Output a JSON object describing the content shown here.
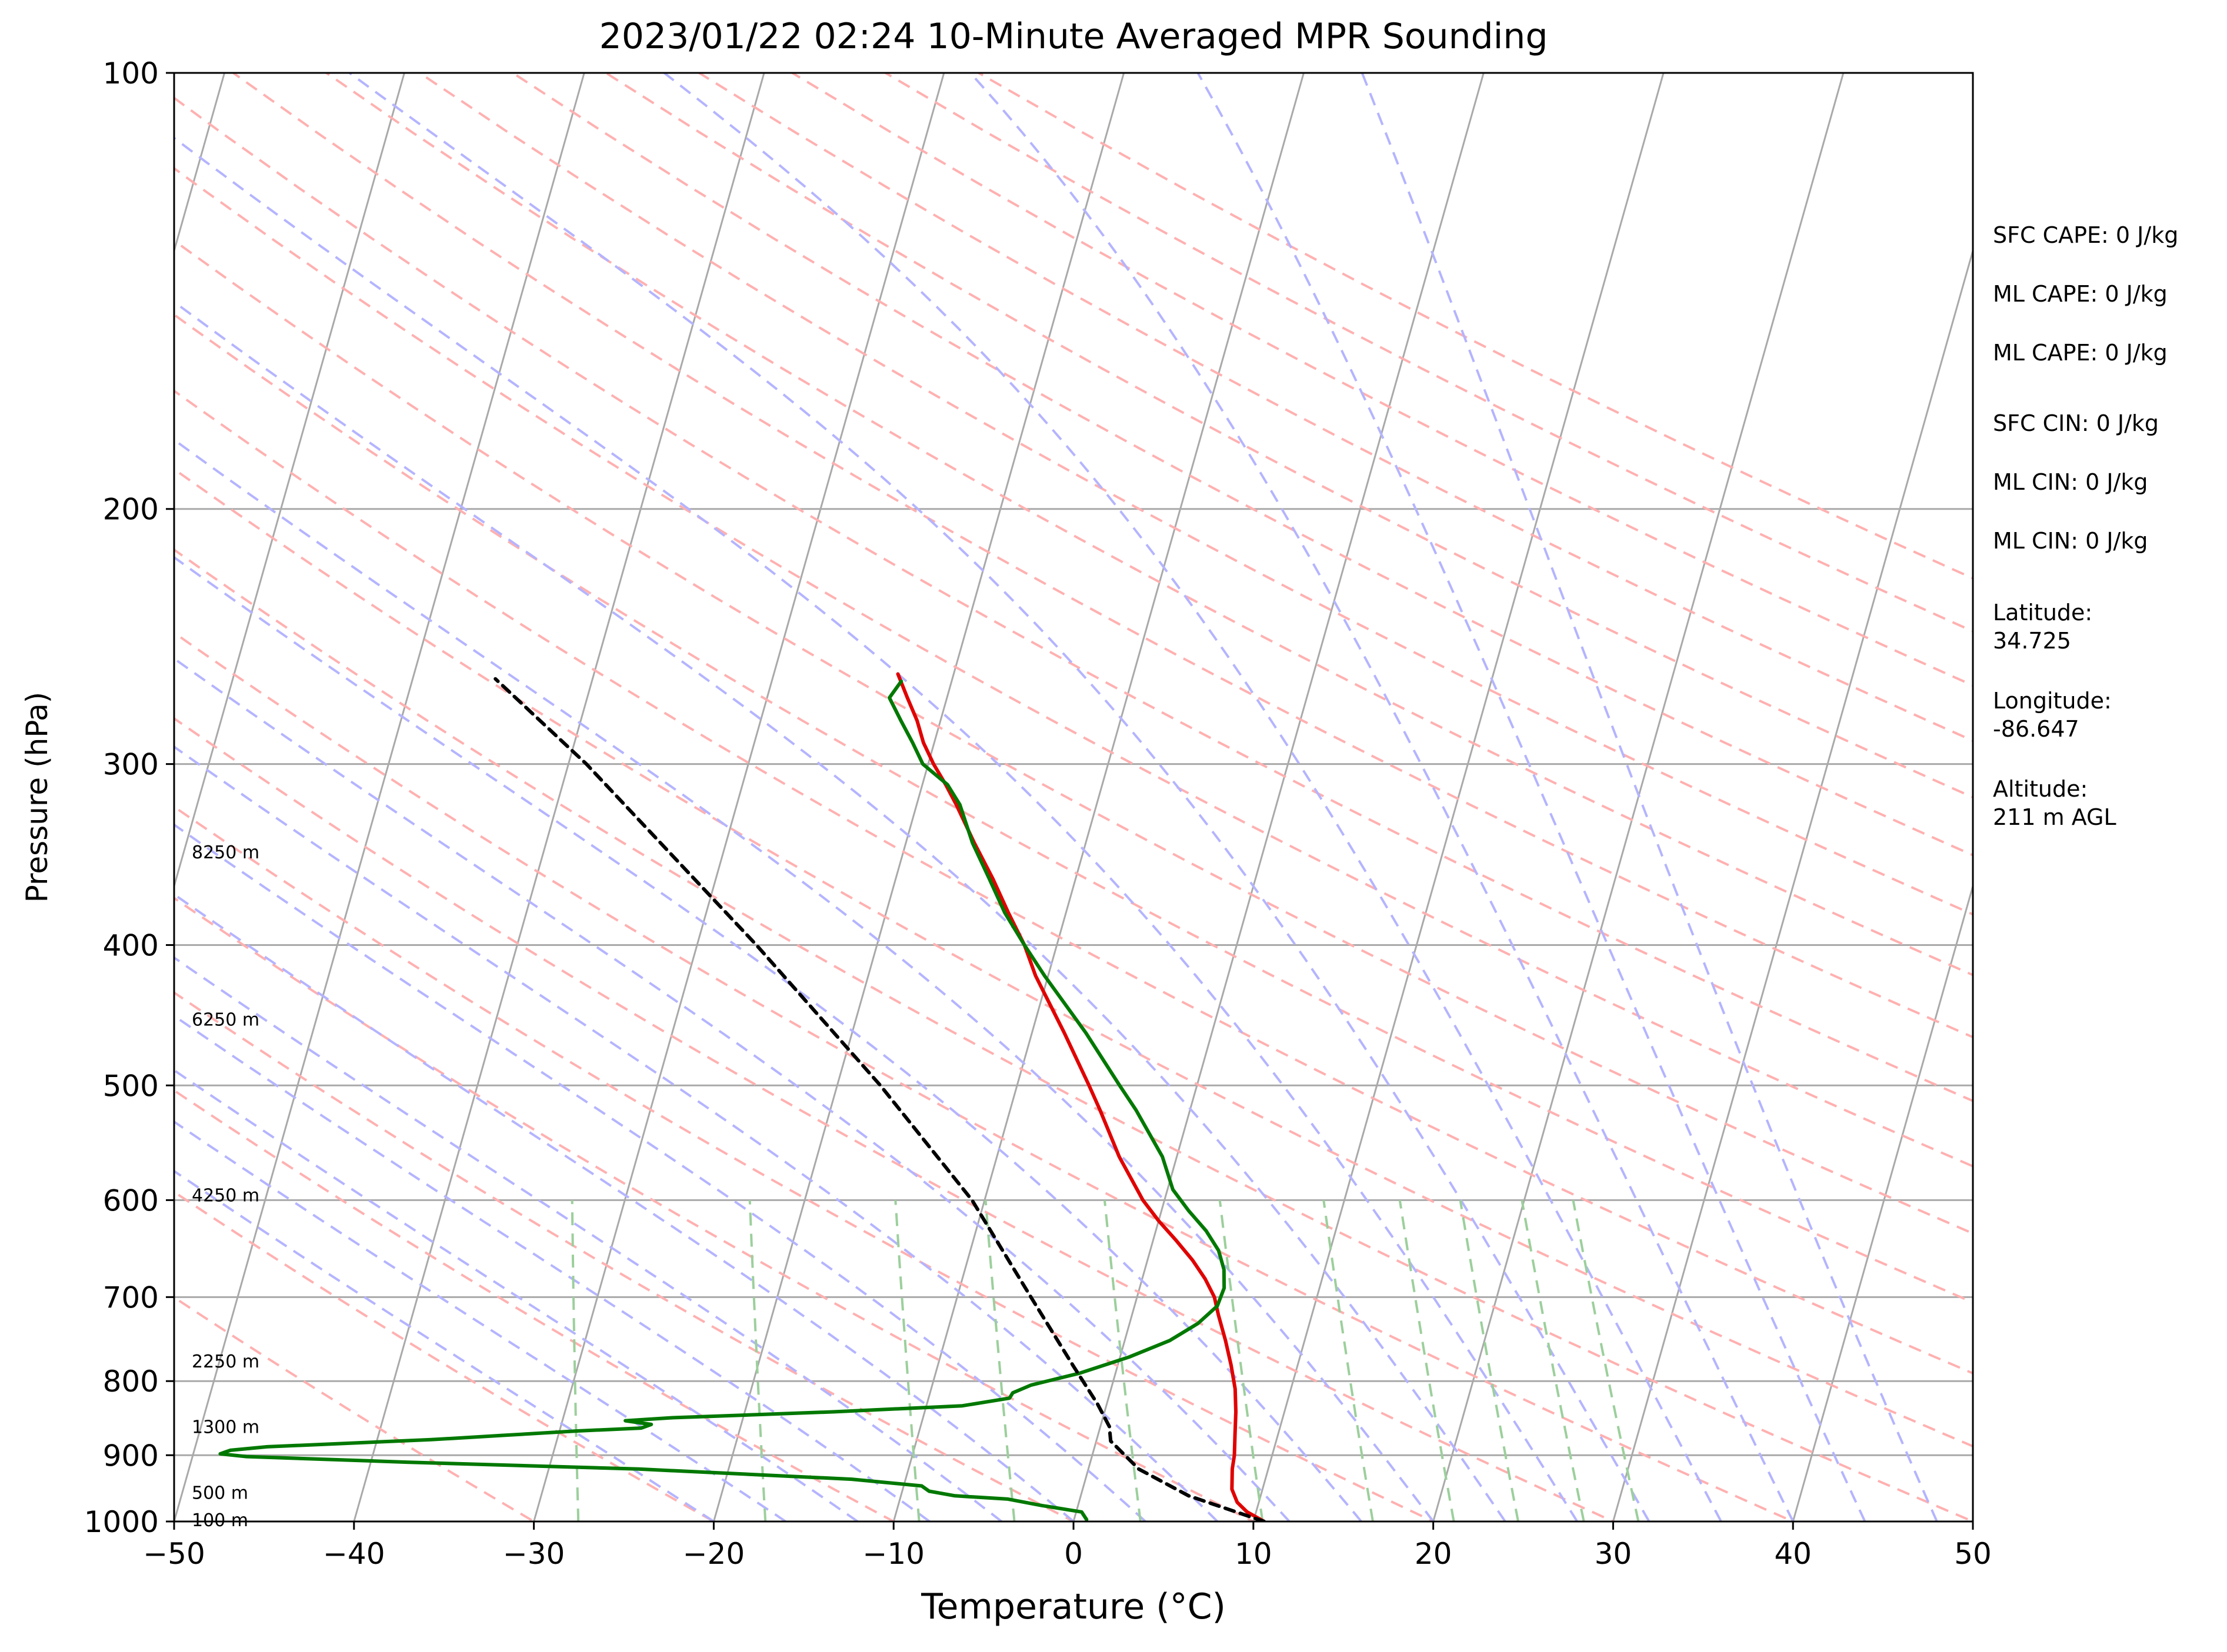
{
  "chart_data": {
    "type": "skew-t",
    "title": "2023/01/22 02:24 10-Minute Averaged MPR Sounding",
    "xlabel": "Temperature (°C)",
    "ylabel": "Pressure (hPa)",
    "xlim": [
      -50,
      50
    ],
    "ylim": [
      1000,
      100
    ],
    "y_scale": "log",
    "x_ticks": [
      -50,
      -40,
      -30,
      -20,
      -10,
      0,
      10,
      20,
      30,
      40,
      50
    ],
    "x_tick_labels": [
      "−50",
      "−40",
      "−30",
      "−20",
      "−10",
      "0",
      "10",
      "20",
      "30",
      "40",
      "50"
    ],
    "y_ticks": [
      1000,
      900,
      800,
      700,
      600,
      500,
      400,
      300,
      200,
      100
    ],
    "y_tick_labels": [
      "1000",
      "900",
      "800",
      "700",
      "600",
      "500",
      "400",
      "300",
      "200",
      "100"
    ],
    "height_labels": [
      {
        "p": 997,
        "label": "100 m"
      },
      {
        "p": 955,
        "label": "500 m"
      },
      {
        "p": 860,
        "label": "1300 m"
      },
      {
        "p": 775,
        "label": "2250 m"
      },
      {
        "p": 595,
        "label": "4250 m"
      },
      {
        "p": 450,
        "label": "6250 m"
      },
      {
        "p": 345,
        "label": "8250 m"
      }
    ],
    "series": [
      {
        "color": "#e00000",
        "style": "solid",
        "points": [
          [
            1000,
            10.6
          ],
          [
            985,
            9.5
          ],
          [
            970,
            8.8
          ],
          [
            950,
            8.3
          ],
          [
            920,
            8.0
          ],
          [
            900,
            7.9
          ],
          [
            870,
            7.6
          ],
          [
            840,
            7.3
          ],
          [
            810,
            6.9
          ],
          [
            780,
            6.3
          ],
          [
            750,
            5.6
          ],
          [
            720,
            4.8
          ],
          [
            700,
            4.3
          ],
          [
            680,
            3.5
          ],
          [
            660,
            2.5
          ],
          [
            640,
            1.3
          ],
          [
            620,
            0.0
          ],
          [
            600,
            -1.2
          ],
          [
            560,
            -3.2
          ],
          [
            520,
            -5.0
          ],
          [
            500,
            -6.0
          ],
          [
            460,
            -8.2
          ],
          [
            420,
            -10.7
          ],
          [
            400,
            -11.8
          ],
          [
            380,
            -13.2
          ],
          [
            360,
            -14.6
          ],
          [
            340,
            -16.2
          ],
          [
            320,
            -17.8
          ],
          [
            310,
            -18.7
          ],
          [
            300,
            -19.7
          ],
          [
            290,
            -20.6
          ],
          [
            280,
            -21.3
          ],
          [
            270,
            -22.2
          ],
          [
            260,
            -23.1
          ]
        ]
      },
      {
        "color": "#007800",
        "style": "solid",
        "points": [
          [
            997,
            0.7
          ],
          [
            985,
            0.3
          ],
          [
            975,
            -2
          ],
          [
            965,
            -4
          ],
          [
            960,
            -7
          ],
          [
            953,
            -8.5
          ],
          [
            945,
            -9
          ],
          [
            935,
            -13
          ],
          [
            920,
            -25
          ],
          [
            910,
            -38
          ],
          [
            902,
            -47
          ],
          [
            898,
            -48.5
          ],
          [
            893,
            -48
          ],
          [
            888,
            -46
          ],
          [
            878,
            -37
          ],
          [
            872,
            -33
          ],
          [
            866,
            -29
          ],
          [
            862,
            -25.5
          ],
          [
            857,
            -25
          ],
          [
            852,
            -26.5
          ],
          [
            848,
            -24
          ],
          [
            840,
            -15
          ],
          [
            832,
            -8
          ],
          [
            822,
            -5.5
          ],
          [
            815,
            -5.4
          ],
          [
            805,
            -4.5
          ],
          [
            790,
            -2
          ],
          [
            770,
            0.5
          ],
          [
            750,
            2.5
          ],
          [
            730,
            3.8
          ],
          [
            710,
            4.6
          ],
          [
            690,
            4.7
          ],
          [
            670,
            4.4
          ],
          [
            650,
            3.8
          ],
          [
            630,
            2.8
          ],
          [
            610,
            1.5
          ],
          [
            590,
            0.3
          ],
          [
            560,
            -0.8
          ],
          [
            520,
            -3.0
          ],
          [
            500,
            -4.3
          ],
          [
            460,
            -7.0
          ],
          [
            420,
            -10.2
          ],
          [
            400,
            -11.8
          ],
          [
            380,
            -13.4
          ],
          [
            360,
            -14.8
          ],
          [
            340,
            -16.3
          ],
          [
            320,
            -17.6
          ],
          [
            310,
            -18.6
          ],
          [
            300,
            -20.3
          ],
          [
            290,
            -21.2
          ],
          [
            280,
            -22.2
          ],
          [
            270,
            -23.2
          ],
          [
            263,
            -22.8
          ]
        ]
      },
      {
        "color": "#000000",
        "style": "dashed",
        "points": [
          [
            1000,
            10.6
          ],
          [
            960,
            6.0
          ],
          [
            920,
            2.8
          ],
          [
            880,
            0.8
          ],
          [
            860,
            0.5
          ],
          [
            830,
            -0.5
          ],
          [
            780,
            -2.5
          ],
          [
            700,
            -5.9
          ],
          [
            600,
            -10.7
          ],
          [
            500,
            -17.6
          ],
          [
            400,
            -26.7
          ],
          [
            300,
            -39.0
          ],
          [
            262,
            -45.4
          ]
        ]
      }
    ]
  },
  "info_lines": [
    "SFC CAPE: 0 J/kg",
    "ML CAPE: 0 J/kg",
    "ML CAPE: 0 J/kg",
    "SFC CIN: 0 J/kg",
    "ML CIN: 0 J/kg",
    "ML CIN: 0 J/kg",
    "Latitude:\n34.725",
    "Longitude:\n-86.647",
    "Altitude:\n211 m AGL"
  ],
  "colors": {
    "isotherm": "#a9a9a9",
    "dry_adiabat": "#ffb0b0",
    "moist_adiabat": "#b4b4ff",
    "mixing_ratio": "#9ccf9c",
    "temperature": "#e00000",
    "dewpoint": "#007800",
    "parcel": "#000000"
  }
}
